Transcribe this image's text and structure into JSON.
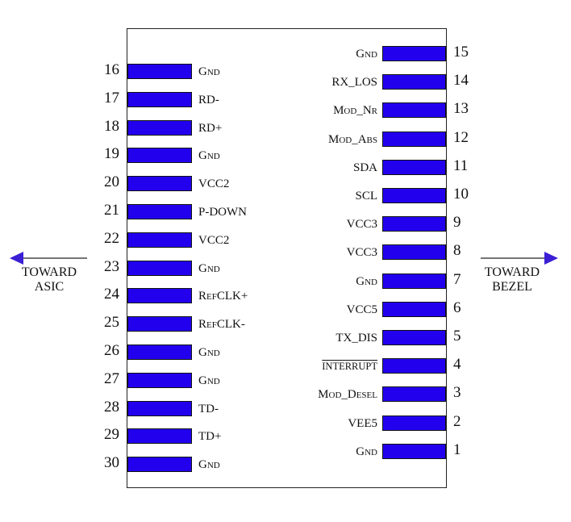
{
  "colors": {
    "pad": "#2200ee",
    "outline": "#111111",
    "arrow": "#3a1fd4"
  },
  "left_pins": [
    {
      "num": "16",
      "label": "Gnd",
      "smallcaps": true
    },
    {
      "num": "17",
      "label": "RD-"
    },
    {
      "num": "18",
      "label": "RD+"
    },
    {
      "num": "19",
      "label": "Gnd",
      "smallcaps": true
    },
    {
      "num": "20",
      "label": "VCC2"
    },
    {
      "num": "21",
      "label": "P-DOWN"
    },
    {
      "num": "22",
      "label": "VCC2"
    },
    {
      "num": "23",
      "label": "Gnd",
      "smallcaps": true
    },
    {
      "num": "24",
      "label": "RefCLK+",
      "smallcaps": true
    },
    {
      "num": "25",
      "label": "RefCLK-",
      "smallcaps": true
    },
    {
      "num": "26",
      "label": "Gnd",
      "smallcaps": true
    },
    {
      "num": "27",
      "label": "Gnd",
      "smallcaps": true
    },
    {
      "num": "28",
      "label": "TD-"
    },
    {
      "num": "29",
      "label": "TD+"
    },
    {
      "num": "30",
      "label": "Gnd",
      "smallcaps": true
    }
  ],
  "right_pins": [
    {
      "num": "15",
      "label": "Gnd",
      "smallcaps": true
    },
    {
      "num": "14",
      "label": "RX_LOS"
    },
    {
      "num": "13",
      "label": "Mod_Nr",
      "smallcaps": true
    },
    {
      "num": "12",
      "label": "Mod_Abs",
      "smallcaps": true
    },
    {
      "num": "11",
      "label": "SDA"
    },
    {
      "num": "10",
      "label": "SCL"
    },
    {
      "num": "9",
      "label": "VCC3"
    },
    {
      "num": "8",
      "label": "VCC3"
    },
    {
      "num": "7",
      "label": "Gnd",
      "smallcaps": true
    },
    {
      "num": "6",
      "label": "VCC5"
    },
    {
      "num": "5",
      "label": "TX_DIS"
    },
    {
      "num": "4",
      "label": "INTERRUPT",
      "overline": true
    },
    {
      "num": "3",
      "label": "Mod_Desel",
      "smallcaps": true
    },
    {
      "num": "2",
      "label": "VEE5"
    },
    {
      "num": "1",
      "label": "Gnd",
      "smallcaps": true
    }
  ],
  "directions": {
    "left": {
      "line1": "TOWARD",
      "line2": "ASIC"
    },
    "right": {
      "line1": "TOWARD",
      "line2": "BEZEL"
    }
  }
}
